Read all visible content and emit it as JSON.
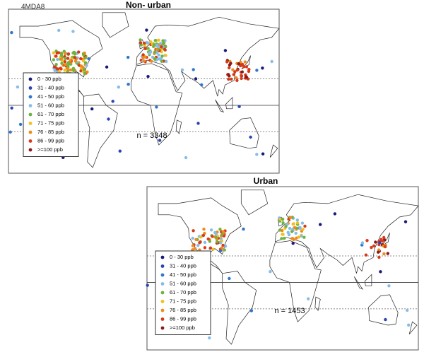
{
  "header": {
    "label": "4MDA8"
  },
  "panels": [
    {
      "title": "Non- urban",
      "n_label": "n = 3348"
    },
    {
      "title": "Urban",
      "n_label": "n = 1453"
    }
  ],
  "legend": {
    "items": [
      {
        "label": "0 - 30  ppb",
        "color": "#1a1a7a"
      },
      {
        "label": "31 - 40  ppb",
        "color": "#2a45b0"
      },
      {
        "label": "41 - 50  ppb",
        "color": "#2f77c8"
      },
      {
        "label": "51 - 60  ppb",
        "color": "#86bde8"
      },
      {
        "label": "61 - 70  ppb",
        "color": "#6db33f"
      },
      {
        "label": "71 - 75  ppb",
        "color": "#f0c020"
      },
      {
        "label": "76 - 85  ppb",
        "color": "#f08a1a"
      },
      {
        "label": "86 - 99  ppb",
        "color": "#d63a1a"
      },
      {
        "label": ">=100  ppb",
        "color": "#8b1a1a"
      }
    ]
  }
}
